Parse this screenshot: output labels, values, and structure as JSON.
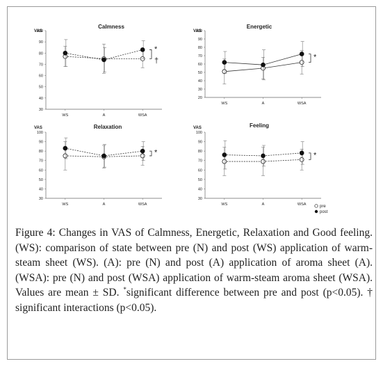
{
  "figure": {
    "caption": {
      "label": "Figure 4:",
      "body": "Changes in VAS of Calmness, Energetic, Relaxation and Good feeling. (WS): comparison of state between pre (N) and post (WS) application of warm-steam sheet (WS). (A): pre (N) and post (A) application of aroma sheet (A). (WSA): pre (N) and post (WSA) application of warm-steam aroma sheet (WSA). Values are mean ± SD. ",
      "star_marker": "*",
      "tail": "significant difference between pre and post (p<0.05). † significant interactions (p<0.05)."
    },
    "legend": {
      "entries": [
        {
          "label": "pre",
          "marker": "open-circle"
        },
        {
          "label": "post",
          "marker": "filled-circle"
        }
      ]
    }
  },
  "chart_data": [
    {
      "type": "line",
      "title": "Calmness",
      "ylabel": "VAS",
      "ylim": [
        30,
        100
      ],
      "yticks": [
        30,
        40,
        50,
        60,
        70,
        80,
        90,
        100
      ],
      "categories": [
        "WS",
        "A",
        "WSA"
      ],
      "series": [
        {
          "name": "pre",
          "values": [
            77,
            75,
            75
          ],
          "sd": [
            9,
            13,
            8
          ],
          "marker": "open",
          "line": "dashed"
        },
        {
          "name": "post",
          "values": [
            80,
            74,
            83
          ],
          "sd": [
            12,
            11,
            8
          ],
          "marker": "filled",
          "line": "dashed"
        }
      ],
      "annotations": [
        "*",
        "†"
      ]
    },
    {
      "type": "line",
      "title": "Energetic",
      "ylabel": "VAS",
      "ylim": [
        20,
        100
      ],
      "yticks": [
        20,
        30,
        40,
        50,
        60,
        70,
        80,
        90,
        100
      ],
      "categories": [
        "WS",
        "A",
        "WSA"
      ],
      "series": [
        {
          "name": "pre",
          "values": [
            51,
            55,
            62
          ],
          "sd": [
            15,
            13,
            14
          ],
          "marker": "open",
          "line": "solid"
        },
        {
          "name": "post",
          "values": [
            62,
            59,
            72
          ],
          "sd": [
            13,
            18,
            15
          ],
          "marker": "filled",
          "line": "solid"
        }
      ],
      "annotations": [
        "*"
      ]
    },
    {
      "type": "line",
      "title": "Relaxation",
      "ylabel": "VAS",
      "ylim": [
        30,
        100
      ],
      "yticks": [
        30,
        40,
        50,
        60,
        70,
        80,
        90,
        100
      ],
      "categories": [
        "WS",
        "A",
        "WSA"
      ],
      "series": [
        {
          "name": "pre",
          "values": [
            75,
            74,
            75
          ],
          "sd": [
            15,
            12,
            10
          ],
          "marker": "open",
          "line": "dashed"
        },
        {
          "name": "post",
          "values": [
            83,
            75,
            80
          ],
          "sd": [
            11,
            12,
            10
          ],
          "marker": "filled",
          "line": "dashed"
        }
      ],
      "annotations": [
        "*"
      ]
    },
    {
      "type": "line",
      "title": "Feeling",
      "ylabel": "VAS",
      "ylim": [
        30,
        100
      ],
      "yticks": [
        30,
        40,
        50,
        60,
        70,
        80,
        90,
        100
      ],
      "categories": [
        "WS",
        "A",
        "WSA"
      ],
      "series": [
        {
          "name": "pre",
          "values": [
            69,
            69,
            71
          ],
          "sd": [
            15,
            15,
            11
          ],
          "marker": "open",
          "line": "dashed"
        },
        {
          "name": "post",
          "values": [
            76,
            75,
            78
          ],
          "sd": [
            15,
            11,
            12
          ],
          "marker": "filled",
          "line": "dashed"
        }
      ],
      "annotations": [
        "*"
      ]
    }
  ]
}
